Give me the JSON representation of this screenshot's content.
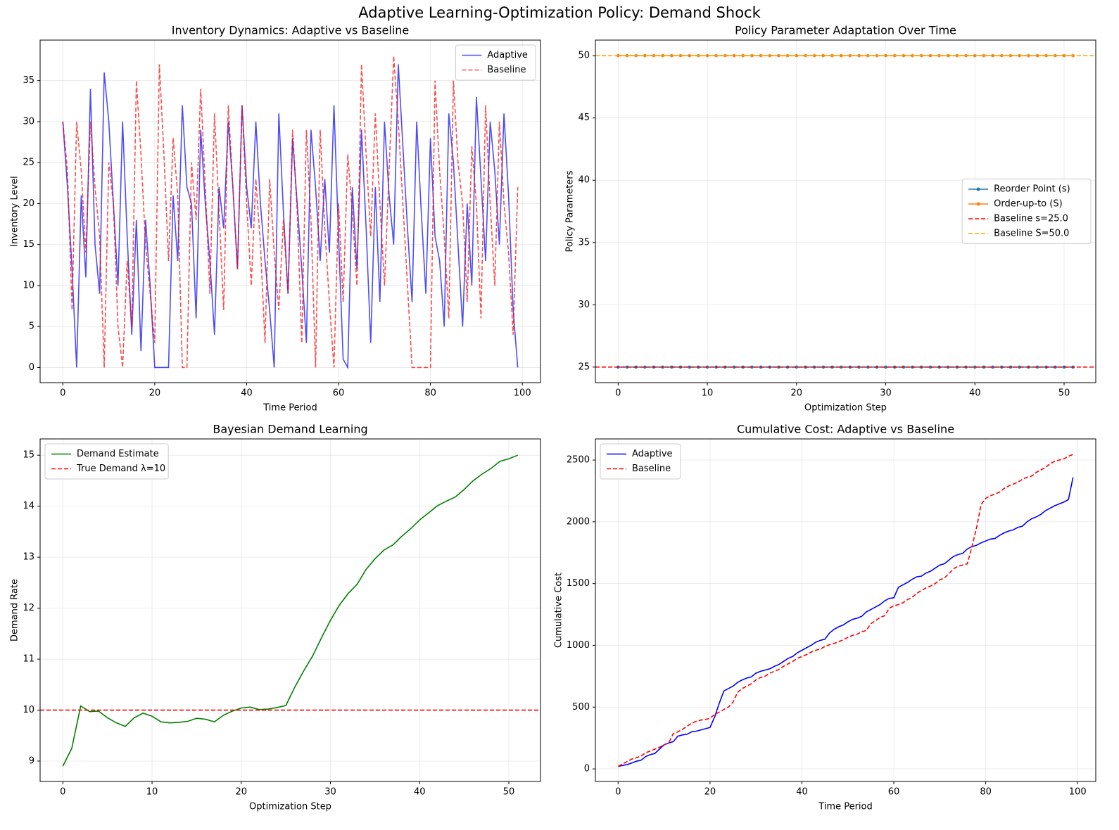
{
  "title": "Adaptive Learning-Optimization Policy: Demand Shock",
  "chart_data": [
    {
      "type": "line",
      "title": "Inventory Dynamics: Adaptive vs Baseline",
      "xlabel": "Time Period",
      "ylabel": "Inventory Level",
      "x": [
        0,
        1,
        2,
        3,
        4,
        5,
        6,
        7,
        8,
        9,
        10,
        11,
        12,
        13,
        14,
        15,
        16,
        17,
        18,
        19,
        20,
        21,
        22,
        23,
        24,
        25,
        26,
        27,
        28,
        29,
        30,
        31,
        32,
        33,
        34,
        35,
        36,
        37,
        38,
        39,
        40,
        41,
        42,
        43,
        44,
        45,
        46,
        47,
        48,
        49,
        50,
        51,
        52,
        53,
        54,
        55,
        56,
        57,
        58,
        59,
        60,
        61,
        62,
        63,
        64,
        65,
        66,
        67,
        68,
        69,
        70,
        71,
        72,
        73,
        74,
        75,
        76,
        77,
        78,
        79,
        80,
        81,
        82,
        83,
        84,
        85,
        86,
        87,
        88,
        89,
        90,
        91,
        92,
        93,
        94,
        95,
        96,
        97,
        98,
        99
      ],
      "series": [
        {
          "name": "Adaptive",
          "color": "#0000ff",
          "opacity": 0.7,
          "dash": false,
          "values": [
            30,
            22,
            12,
            0,
            21,
            11,
            34,
            15,
            9,
            36,
            30,
            20,
            10,
            30,
            16,
            4,
            18,
            2,
            18,
            10,
            0,
            0,
            0,
            0,
            21,
            13,
            32,
            22,
            20,
            6,
            29,
            20,
            13,
            4,
            22,
            17,
            30,
            22,
            12,
            32,
            22,
            17,
            30,
            20,
            13,
            7,
            0,
            31,
            19,
            9,
            28,
            20,
            12,
            3,
            29,
            22,
            13,
            23,
            14,
            32,
            16,
            1,
            0,
            22,
            12,
            29,
            17,
            3,
            22,
            8,
            30,
            21,
            15,
            37,
            27,
            17,
            8,
            30,
            19,
            9,
            28,
            16,
            13,
            5,
            31,
            25,
            15,
            5,
            20,
            10,
            33,
            23,
            13,
            30,
            24,
            15,
            31,
            21,
            7,
            0
          ]
        },
        {
          "name": "Baseline",
          "color": "#ff0000",
          "opacity": 0.7,
          "dash": true,
          "values": [
            30,
            24,
            7,
            30,
            24,
            14,
            30,
            22,
            16,
            0,
            25,
            20,
            5,
            0,
            13,
            5,
            35,
            26,
            15,
            9,
            3,
            37,
            26,
            13,
            28,
            21,
            0,
            0,
            25,
            18,
            34,
            22,
            9,
            31,
            19,
            7,
            32,
            22,
            12,
            32,
            20,
            10,
            23,
            15,
            3,
            23,
            14,
            7,
            18,
            9,
            29,
            19,
            3,
            29,
            18,
            0,
            29,
            17,
            8,
            0,
            20,
            8,
            26,
            19,
            10,
            37,
            26,
            16,
            31,
            20,
            10,
            24,
            38,
            30,
            20,
            10,
            0,
            0,
            0,
            0,
            0,
            35,
            24,
            16,
            6,
            35,
            25,
            20,
            8,
            27,
            20,
            6,
            32,
            20,
            10,
            30,
            20,
            14,
            4,
            22
          ]
        }
      ],
      "xlim": [
        -4.95,
        103.95
      ],
      "ylim": [
        -1.85,
        39.95
      ],
      "xticks": [
        0,
        20,
        40,
        60,
        80,
        100
      ],
      "yticks": [
        0,
        5,
        10,
        15,
        20,
        25,
        30,
        35
      ],
      "grid": true,
      "legend": "upper right"
    },
    {
      "type": "line",
      "title": "Policy Parameter Adaptation Over Time",
      "xlabel": "Optimization Step",
      "ylabel": "Policy Parameters",
      "x": [
        0,
        1,
        2,
        3,
        4,
        5,
        6,
        7,
        8,
        9,
        10,
        11,
        12,
        13,
        14,
        15,
        16,
        17,
        18,
        19,
        20,
        21,
        22,
        23,
        24,
        25,
        26,
        27,
        28,
        29,
        30,
        31,
        32,
        33,
        34,
        35,
        36,
        37,
        38,
        39,
        40,
        41,
        42,
        43,
        44,
        45,
        46,
        47,
        48,
        49,
        50,
        51
      ],
      "series": [
        {
          "name": "Reorder Point (s)",
          "color": "#1f77b4",
          "dash": false,
          "marker": true,
          "values": [
            25,
            25,
            25,
            25,
            25,
            25,
            25,
            25,
            25,
            25,
            25,
            25,
            25,
            25,
            25,
            25,
            25,
            25,
            25,
            25,
            25,
            25,
            25,
            25,
            25,
            25,
            25,
            25,
            25,
            25,
            25,
            25,
            25,
            25,
            25,
            25,
            25,
            25,
            25,
            25,
            25,
            25,
            25,
            25,
            25,
            25,
            25,
            25,
            25,
            25,
            25,
            25
          ]
        },
        {
          "name": "Order-up-to (S)",
          "color": "#ff7f0e",
          "dash": false,
          "marker": true,
          "values": [
            50,
            50,
            50,
            50,
            50,
            50,
            50,
            50,
            50,
            50,
            50,
            50,
            50,
            50,
            50,
            50,
            50,
            50,
            50,
            50,
            50,
            50,
            50,
            50,
            50,
            50,
            50,
            50,
            50,
            50,
            50,
            50,
            50,
            50,
            50,
            50,
            50,
            50,
            50,
            50,
            50,
            50,
            50,
            50,
            50,
            50,
            50,
            50,
            50,
            50,
            50,
            50
          ]
        }
      ],
      "hlines": [
        {
          "name": "Baseline s=25.0",
          "color": "#ff0000",
          "value": 25
        },
        {
          "name": "Baseline S=50.0",
          "color": "#ffa500",
          "value": 50
        }
      ],
      "xlim": [
        -2.55,
        53.55
      ],
      "ylim": [
        23.75,
        51.25
      ],
      "xticks": [
        0,
        10,
        20,
        30,
        40,
        50
      ],
      "yticks": [
        25,
        30,
        35,
        40,
        45,
        50
      ],
      "grid": true,
      "legend": "center right"
    },
    {
      "type": "line",
      "title": "Bayesian Demand Learning",
      "xlabel": "Optimization Step",
      "ylabel": "Demand Rate",
      "x": [
        0,
        1,
        2,
        3,
        4,
        5,
        6,
        7,
        8,
        9,
        10,
        11,
        12,
        13,
        14,
        15,
        16,
        17,
        18,
        19,
        20,
        21,
        22,
        23,
        24,
        25,
        26,
        27,
        28,
        29,
        30,
        31,
        32,
        33,
        34,
        35,
        36,
        37,
        38,
        39,
        40,
        41,
        42,
        43,
        44,
        45,
        46,
        47,
        48,
        49,
        50,
        51
      ],
      "series": [
        {
          "name": "Demand Estimate",
          "color": "#008000",
          "dash": false,
          "values": [
            8.9,
            9.25,
            10.08,
            9.97,
            9.98,
            9.85,
            9.75,
            9.68,
            9.85,
            9.94,
            9.88,
            9.77,
            9.75,
            9.76,
            9.78,
            9.84,
            9.82,
            9.77,
            9.9,
            9.98,
            10.04,
            10.06,
            10.01,
            10.02,
            10.05,
            10.09,
            10.45,
            10.77,
            11.06,
            11.42,
            11.76,
            12.06,
            12.29,
            12.47,
            12.76,
            12.97,
            13.14,
            13.24,
            13.41,
            13.56,
            13.73,
            13.87,
            14.01,
            14.1,
            14.18,
            14.33,
            14.5,
            14.63,
            14.74,
            14.88,
            14.93,
            15.0
          ]
        }
      ],
      "hlines": [
        {
          "name": "True Demand λ=10",
          "color": "#ff0000",
          "value": 10
        }
      ],
      "xlim": [
        -2.55,
        53.55
      ],
      "ylim": [
        8.6,
        15.32
      ],
      "xticks": [
        0,
        10,
        20,
        30,
        40,
        50
      ],
      "yticks": [
        9,
        10,
        11,
        12,
        13,
        14,
        15
      ],
      "grid": true,
      "legend": "upper left"
    },
    {
      "type": "line",
      "title": "Cumulative Cost: Adaptive vs Baseline",
      "xlabel": "Time Period",
      "ylabel": "Cumulative Cost",
      "x": [
        0,
        1,
        2,
        3,
        4,
        5,
        6,
        7,
        8,
        9,
        10,
        11,
        12,
        13,
        14,
        15,
        16,
        17,
        18,
        19,
        20,
        21,
        22,
        23,
        24,
        25,
        26,
        27,
        28,
        29,
        30,
        31,
        32,
        33,
        34,
        35,
        36,
        37,
        38,
        39,
        40,
        41,
        42,
        43,
        44,
        45,
        46,
        47,
        48,
        49,
        50,
        51,
        52,
        53,
        54,
        55,
        56,
        57,
        58,
        59,
        60,
        61,
        62,
        63,
        64,
        65,
        66,
        67,
        68,
        69,
        70,
        71,
        72,
        73,
        74,
        75,
        76,
        77,
        78,
        79,
        80,
        81,
        82,
        83,
        84,
        85,
        86,
        87,
        88,
        89,
        90,
        91,
        92,
        93,
        94,
        95,
        96,
        97,
        98,
        99
      ],
      "series": [
        {
          "name": "Adaptive",
          "color": "#0000ff",
          "dash": false,
          "values": [
            20,
            28,
            35,
            48,
            62,
            70,
            100,
            115,
            125,
            160,
            195,
            210,
            220,
            265,
            275,
            280,
            300,
            305,
            315,
            325,
            335,
            420,
            530,
            630,
            650,
            670,
            700,
            720,
            735,
            745,
            775,
            790,
            800,
            810,
            830,
            845,
            870,
            895,
            910,
            940,
            960,
            980,
            1000,
            1025,
            1040,
            1050,
            1100,
            1130,
            1150,
            1165,
            1190,
            1210,
            1220,
            1235,
            1270,
            1290,
            1310,
            1330,
            1360,
            1380,
            1385,
            1470,
            1490,
            1510,
            1535,
            1555,
            1560,
            1585,
            1600,
            1625,
            1650,
            1660,
            1690,
            1720,
            1735,
            1745,
            1780,
            1800,
            1810,
            1830,
            1845,
            1860,
            1865,
            1890,
            1910,
            1925,
            1935,
            1955,
            1965,
            2000,
            2025,
            2040,
            2060,
            2090,
            2110,
            2130,
            2145,
            2160,
            2180,
            2360
          ]
        },
        {
          "name": "Baseline",
          "color": "#ff0000",
          "dash": true,
          "values": [
            20,
            40,
            60,
            80,
            90,
            105,
            130,
            145,
            160,
            175,
            195,
            210,
            285,
            300,
            320,
            345,
            370,
            385,
            395,
            400,
            410,
            440,
            460,
            480,
            500,
            540,
            620,
            650,
            670,
            690,
            720,
            740,
            750,
            775,
            790,
            805,
            830,
            850,
            870,
            895,
            910,
            925,
            945,
            960,
            970,
            990,
            1005,
            1015,
            1030,
            1045,
            1065,
            1080,
            1090,
            1110,
            1120,
            1175,
            1200,
            1225,
            1240,
            1300,
            1320,
            1330,
            1345,
            1370,
            1390,
            1420,
            1445,
            1465,
            1480,
            1500,
            1530,
            1545,
            1580,
            1620,
            1640,
            1650,
            1660,
            1800,
            1950,
            2140,
            2190,
            2210,
            2225,
            2240,
            2270,
            2290,
            2305,
            2320,
            2345,
            2360,
            2370,
            2400,
            2420,
            2440,
            2470,
            2490,
            2500,
            2510,
            2530,
            2545
          ]
        }
      ],
      "xlim": [
        -4.95,
        103.95
      ],
      "ylim": [
        -102,
        2671
      ],
      "xticks": [
        0,
        20,
        40,
        60,
        80,
        100
      ],
      "yticks": [
        0,
        500,
        1000,
        1500,
        2000,
        2500
      ],
      "grid": true,
      "legend": "upper left"
    }
  ]
}
